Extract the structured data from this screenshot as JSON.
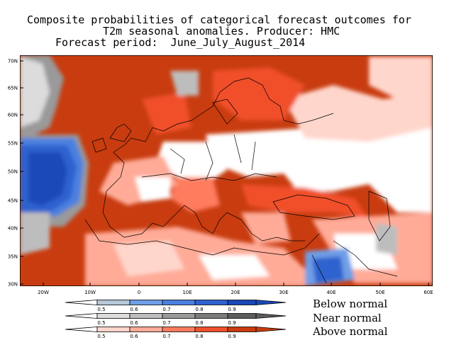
{
  "title": {
    "line1": "Composite probabilities of categorical forecast outcomes for",
    "line2": "T2m seasonal anomalies. Producer: HMC",
    "line3": "Forecast period:  June_July_August_2014"
  },
  "map": {
    "lat_labels": [
      "70N",
      "65N",
      "60N",
      "55N",
      "50N",
      "45N",
      "40N",
      "35N",
      "30N"
    ],
    "lon_labels": [
      "20W",
      "10W",
      "0",
      "10E",
      "20E",
      "30E",
      "40E",
      "50E",
      "60E"
    ]
  },
  "legend": {
    "rows": [
      {
        "label": "Below normal",
        "ticks": [
          "0.5",
          "0.6",
          "0.7",
          "0.8",
          "0.9"
        ],
        "colors": [
          "#b6c8d8",
          "#6f9ee6",
          "#4b80e0",
          "#2f62cf",
          "#1a48b8"
        ]
      },
      {
        "label": "Near normal",
        "ticks": [
          "0.5",
          "0.6",
          "0.7",
          "0.8",
          "0.9"
        ],
        "colors": [
          "#dcdcdc",
          "#bdbdbd",
          "#9a9a9a",
          "#7c7c7c",
          "#5c5c5c"
        ]
      },
      {
        "label": "Above normal",
        "ticks": [
          "0.5",
          "0.6",
          "0.7",
          "0.8",
          "0.9"
        ],
        "colors": [
          "#ffd6cc",
          "#ffab98",
          "#ff7b5e",
          "#f0502c",
          "#c83c10"
        ]
      }
    ]
  }
}
